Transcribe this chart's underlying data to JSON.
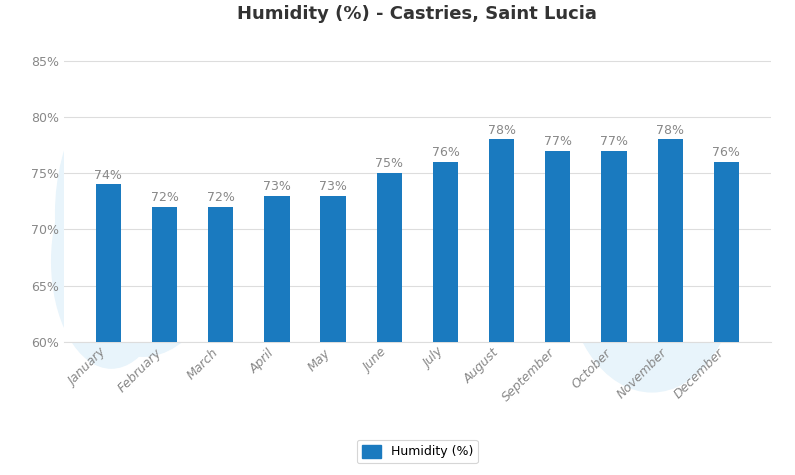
{
  "title": "Humidity (%) - Castries, Saint Lucia",
  "categories": [
    "January",
    "February",
    "March",
    "April",
    "May",
    "June",
    "July",
    "August",
    "September",
    "October",
    "November",
    "December"
  ],
  "values": [
    74,
    72,
    72,
    73,
    73,
    75,
    76,
    78,
    77,
    77,
    78,
    76
  ],
  "bar_color": "#1a7abf",
  "background_color": "#ffffff",
  "plot_bg_color": "#ffffff",
  "ylim": [
    60,
    87
  ],
  "yticks": [
    60,
    65,
    70,
    75,
    80,
    85
  ],
  "legend_label": "Humidity (%)",
  "label_color": "#888888",
  "tick_color": "#aaaaaa",
  "title_fontsize": 13,
  "axis_fontsize": 9,
  "annotation_fontsize": 9,
  "grid_color": "#dddddd",
  "bar_width": 0.45
}
